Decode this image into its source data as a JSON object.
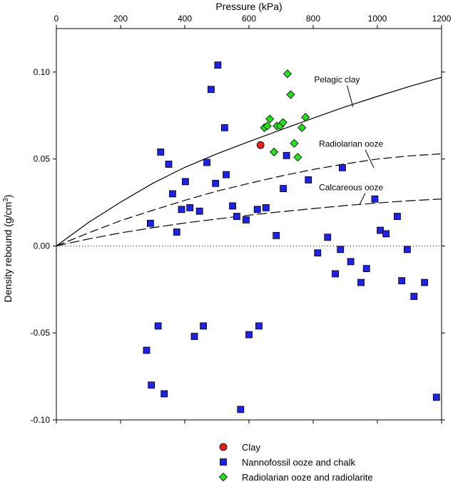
{
  "chart_data": {
    "type": "scatter",
    "xlabel": "Pressure (kPa)",
    "ylabel": "Density rebound (g/cm3)",
    "ylabel_base": "Density rebound (g/cm",
    "ylabel_sup": "3",
    "ylabel_tail": ")",
    "xlim": [
      0,
      1200
    ],
    "ylim": [
      -0.1,
      0.125
    ],
    "x_ticks": [
      0,
      200,
      400,
      600,
      800,
      1000,
      1200
    ],
    "x_tick_labels": [
      "0",
      "200",
      "400",
      "600",
      "800",
      "1000",
      "1200"
    ],
    "y_ticks": [
      -0.1,
      -0.05,
      0.0,
      0.05,
      0.1
    ],
    "y_tick_labels": [
      "-0.10",
      "-0.05",
      "0.00",
      "0.05",
      "0.10"
    ],
    "x_axis_position": "top",
    "grid": false,
    "legend_position": "bottom-center",
    "series": [
      {
        "name": "Clay",
        "marker": "circle",
        "color": "#e8201c",
        "points": [
          [
            636,
            0.058
          ]
        ]
      },
      {
        "name": "Nannofossil ooze and chalk",
        "marker": "square",
        "color": "#1f22e6",
        "points": [
          [
            281,
            -0.06
          ],
          [
            293,
            0.013
          ],
          [
            296,
            -0.08
          ],
          [
            317,
            -0.046
          ],
          [
            325,
            0.054
          ],
          [
            336,
            -0.085
          ],
          [
            350,
            0.047
          ],
          [
            362,
            0.03
          ],
          [
            375,
            0.008
          ],
          [
            390,
            0.021
          ],
          [
            402,
            0.037
          ],
          [
            416,
            0.022
          ],
          [
            430,
            -0.052
          ],
          [
            446,
            0.02
          ],
          [
            458,
            -0.046
          ],
          [
            469,
            0.048
          ],
          [
            482,
            0.09
          ],
          [
            496,
            0.036
          ],
          [
            503,
            0.104
          ],
          [
            524,
            0.068
          ],
          [
            529,
            0.041
          ],
          [
            549,
            0.023
          ],
          [
            562,
            0.017
          ],
          [
            574,
            -0.094
          ],
          [
            591,
            0.015
          ],
          [
            600,
            -0.051
          ],
          [
            626,
            0.021
          ],
          [
            631,
            -0.046
          ],
          [
            653,
            0.022
          ],
          [
            685,
            0.006
          ],
          [
            707,
            0.033
          ],
          [
            717,
            0.052
          ],
          [
            785,
            0.038
          ],
          [
            814,
            -0.004
          ],
          [
            845,
            0.005
          ],
          [
            869,
            -0.016
          ],
          [
            885,
            -0.002
          ],
          [
            891,
            0.045
          ],
          [
            917,
            -0.009
          ],
          [
            949,
            -0.021
          ],
          [
            966,
            -0.013
          ],
          [
            992,
            0.027
          ],
          [
            1009,
            0.009
          ],
          [
            1027,
            0.007
          ],
          [
            1062,
            0.017
          ],
          [
            1076,
            -0.02
          ],
          [
            1093,
            -0.002
          ],
          [
            1114,
            -0.029
          ],
          [
            1147,
            -0.021
          ],
          [
            1184,
            -0.087
          ]
        ]
      },
      {
        "name": "Radiolarian ooze and radiolarite",
        "marker": "diamond",
        "color": "#22e01c",
        "points": [
          [
            648,
            0.068
          ],
          [
            657,
            0.069
          ],
          [
            665,
            0.073
          ],
          [
            678,
            0.054
          ],
          [
            687,
            0.069
          ],
          [
            697,
            0.069
          ],
          [
            706,
            0.071
          ],
          [
            720,
            0.099
          ],
          [
            730,
            0.087
          ],
          [
            741,
            0.059
          ],
          [
            752,
            0.051
          ],
          [
            765,
            0.068
          ],
          [
            776,
            0.074
          ]
        ]
      }
    ],
    "curves": [
      {
        "label": "Pelagic clay",
        "style": "solid",
        "points": [
          [
            0,
            0
          ],
          [
            100,
            0.0135
          ],
          [
            200,
            0.0252
          ],
          [
            300,
            0.036
          ],
          [
            400,
            0.0452
          ],
          [
            500,
            0.053
          ],
          [
            600,
            0.06
          ],
          [
            700,
            0.0668
          ],
          [
            800,
            0.0735
          ],
          [
            900,
            0.08
          ],
          [
            1000,
            0.086
          ],
          [
            1100,
            0.0917
          ],
          [
            1200,
            0.097
          ]
        ]
      },
      {
        "label": "Radiolarian ooze",
        "style": "dashed",
        "points": [
          [
            0,
            0
          ],
          [
            100,
            0.0075
          ],
          [
            200,
            0.0145
          ],
          [
            300,
            0.0205
          ],
          [
            400,
            0.0262
          ],
          [
            500,
            0.0315
          ],
          [
            600,
            0.036
          ],
          [
            700,
            0.0402
          ],
          [
            800,
            0.044
          ],
          [
            900,
            0.0472
          ],
          [
            1000,
            0.05
          ],
          [
            1100,
            0.0518
          ],
          [
            1200,
            0.053
          ]
        ]
      },
      {
        "label": "Calcareous ooze",
        "style": "longdash",
        "points": [
          [
            0,
            0
          ],
          [
            100,
            0.004
          ],
          [
            200,
            0.0075
          ],
          [
            300,
            0.0105
          ],
          [
            400,
            0.0132
          ],
          [
            500,
            0.0155
          ],
          [
            600,
            0.0177
          ],
          [
            700,
            0.0197
          ],
          [
            800,
            0.0215
          ],
          [
            900,
            0.0232
          ],
          [
            1000,
            0.0247
          ],
          [
            1100,
            0.026
          ],
          [
            1200,
            0.027
          ]
        ]
      }
    ],
    "curve_labels": [
      {
        "text": "Pelagic clay",
        "x": 803,
        "y": 0.094,
        "arrow_to": [
          924,
          0.08
        ]
      },
      {
        "text": "Radiolarian ooze",
        "x": 818,
        "y": 0.057,
        "arrow_to": [
          989,
          0.045
        ]
      },
      {
        "text": "Calcareous ooze",
        "x": 818,
        "y": 0.032,
        "arrow_to": [
          945,
          0.024
        ]
      }
    ],
    "zero_line_style": "dotted"
  }
}
